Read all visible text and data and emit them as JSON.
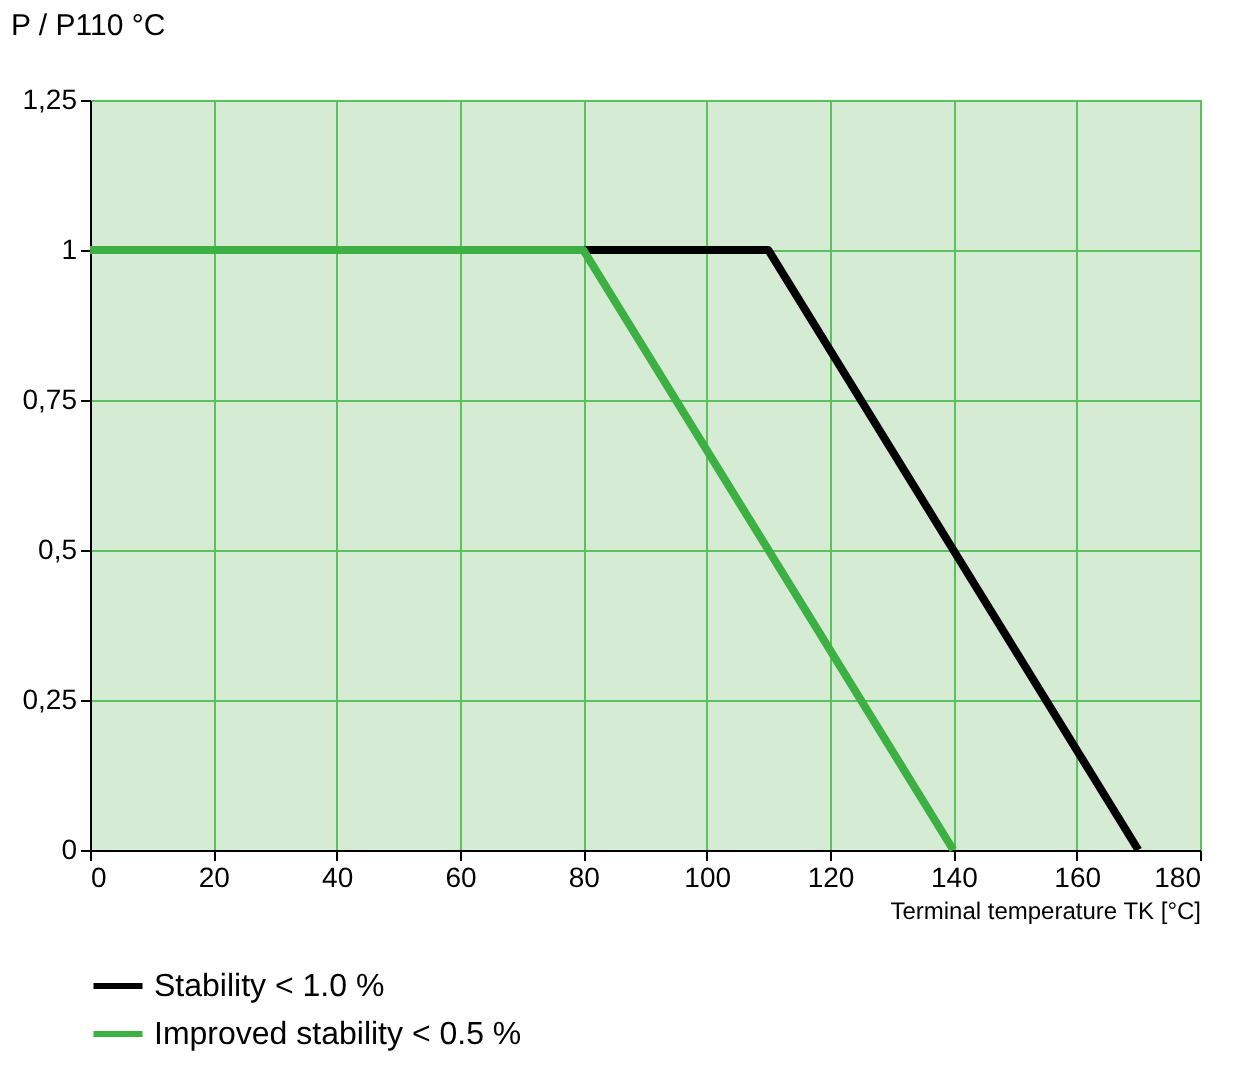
{
  "chart_data": {
    "type": "line",
    "xlabel": "Terminal temperature TK [°C]",
    "ylabel": "P / P110 °C",
    "series": [
      {
        "name": "Stability < 1.0 %",
        "color": "#000000",
        "x": [
          0,
          110,
          170
        ],
        "values": [
          1,
          1,
          0
        ]
      },
      {
        "name": "Improved stability < 0.5 %",
        "color": "#3cb043",
        "x": [
          0,
          80,
          140
        ],
        "values": [
          1,
          1,
          0
        ]
      }
    ],
    "xlim": [
      0,
      180
    ],
    "xticks": [
      0,
      20,
      40,
      60,
      80,
      100,
      120,
      140,
      160,
      180
    ],
    "ylim": [
      0,
      1.25
    ],
    "yticks": [
      0,
      {
        "value": 0.25,
        "label": "0,25"
      },
      {
        "value": 0.5,
        "label": "0,5"
      },
      {
        "value": 0.75,
        "label": "0,75"
      },
      1,
      {
        "value": 1.25,
        "label": "1,25"
      }
    ],
    "grid": true,
    "legend": "bottom",
    "line_style": "solid",
    "marker": "none"
  }
}
